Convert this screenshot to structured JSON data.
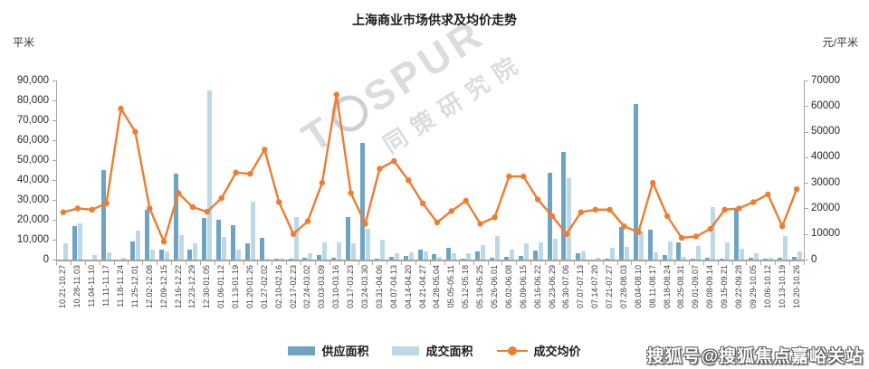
{
  "title": "上海商业市场供求及均价走势",
  "left_axis": {
    "unit": "平米",
    "min": 0,
    "max": 90000,
    "step": 10000,
    "tick_labels": [
      "0",
      "10,000",
      "20,000",
      "30,000",
      "40,000",
      "50,000",
      "60,000",
      "70,000",
      "80,000",
      "90,000"
    ]
  },
  "right_axis": {
    "unit": "元/平米",
    "min": 0,
    "max": 70000,
    "step": 10000,
    "tick_labels": [
      "0",
      "10000",
      "20000",
      "30000",
      "40000",
      "50000",
      "60000",
      "70000"
    ]
  },
  "colors": {
    "supply": "#6fa3c2",
    "transaction": "#bed9e6",
    "price_line": "#ed7d31",
    "axis": "#a6a6a6"
  },
  "legend": [
    {
      "label": "供应面积",
      "type": "bar",
      "color": "#6fa3c2"
    },
    {
      "label": "成交面积",
      "type": "bar",
      "color": "#bed9e6"
    },
    {
      "label": "成交均价",
      "type": "line",
      "color": "#ed7d31"
    }
  ],
  "watermarks": {
    "brand": "T SPUR",
    "brand_prefix": "T",
    "brand_suffix": "SPUR",
    "sub": "同策研究院",
    "sohu": "搜狐号@搜狐焦点嘉峪关站"
  },
  "chart_data": {
    "type": "bar",
    "subtype": "dual-axis bars + line",
    "title": "上海商业市场供求及均价走势",
    "xlabel": "",
    "ylabel_left": "平米",
    "ylabel_right": "元/平米",
    "ylim_left": [
      0,
      90000
    ],
    "ylim_right": [
      0,
      70000
    ],
    "grid": false,
    "legend_position": "bottom-center",
    "categories": [
      "10.21-10.27",
      "10.28-11.03",
      "11.04-11.10",
      "11.11-11.17",
      "11.18-11.24",
      "11.25-12.01",
      "12.02-12.08",
      "12.09-12.15",
      "12.16-12.22",
      "12.23-12.29",
      "12.30-01.05",
      "01.06-01.12",
      "01.13-01.19",
      "01.20-01.26",
      "01.27-02.02",
      "02.10-02.16",
      "02.17-02.23",
      "02.24-03.02",
      "03.03-03.09",
      "03.10-03.16",
      "03.17-03.23",
      "03.24-03.30",
      "03.31-04.06",
      "04.07-04.13",
      "04.14-04.20",
      "04.21-04.27",
      "04.28-05.04",
      "05.05-05.11",
      "05.12-05.18",
      "05.19-05.25",
      "05.26-06.01",
      "06.02-06.08",
      "06.09-06.15",
      "06.16-06.22",
      "06.23-06.29",
      "06.30-07.06",
      "07.07-07.13",
      "07.14-07.20",
      "07.21-07.27",
      "07.28-08.03",
      "08.04-08.10",
      "08.11-08.17",
      "08.18-08.24",
      "08.25-08.31",
      "09.01-09.07",
      "09.08-09.14",
      "09.15-09.21",
      "09.22-09.28",
      "09.29-10.05",
      "10.06-10.12",
      "10.13-10.19",
      "10.20-10.26"
    ],
    "series": [
      {
        "name": "供应面积",
        "type": "bar",
        "axis": "left",
        "color": "#6fa3c2",
        "values": [
          0,
          17000,
          0,
          45000,
          0,
          9000,
          25000,
          5000,
          43000,
          5000,
          21000,
          20000,
          17500,
          8000,
          11000,
          500,
          500,
          1000,
          2500,
          1000,
          21500,
          58500,
          500,
          1500,
          2000,
          5000,
          2600,
          6000,
          500,
          4200,
          1000,
          1500,
          2000,
          4500,
          43500,
          54000,
          3000,
          0,
          500,
          16500,
          78000,
          15000,
          2500,
          8500,
          500,
          1000,
          500,
          25500,
          1000,
          500,
          1000,
          1500
        ]
      },
      {
        "name": "成交面积",
        "type": "bar",
        "axis": "left",
        "color": "#bed9e6",
        "values": [
          8000,
          18000,
          2500,
          3500,
          1000,
          14500,
          5000,
          4000,
          12500,
          8000,
          85000,
          11500,
          5000,
          29000,
          500,
          500,
          21500,
          3000,
          8500,
          8500,
          8000,
          15500,
          10000,
          3000,
          3500,
          4000,
          1500,
          3000,
          3000,
          7500,
          12000,
          5000,
          8000,
          8500,
          10500,
          41000,
          4000,
          1000,
          6000,
          6500,
          14000,
          3500,
          9000,
          1500,
          7000,
          26500,
          8500,
          5500,
          3000,
          1000,
          12000,
          4000
        ]
      },
      {
        "name": "成交均价",
        "type": "line",
        "axis": "right",
        "color": "#ed7d31",
        "values": [
          18500,
          20000,
          19500,
          22000,
          59000,
          50000,
          20000,
          7000,
          26000,
          20500,
          18700,
          24000,
          34000,
          33500,
          43000,
          22500,
          10000,
          15000,
          30000,
          64500,
          26000,
          14000,
          35500,
          38500,
          31000,
          22000,
          14500,
          19000,
          23000,
          14000,
          16500,
          32500,
          32500,
          23500,
          17000,
          10000,
          18500,
          19500,
          19500,
          13000,
          10700,
          30000,
          17000,
          8500,
          9000,
          12000,
          19500,
          20000,
          22500,
          25500,
          13000,
          27500
        ]
      }
    ]
  }
}
